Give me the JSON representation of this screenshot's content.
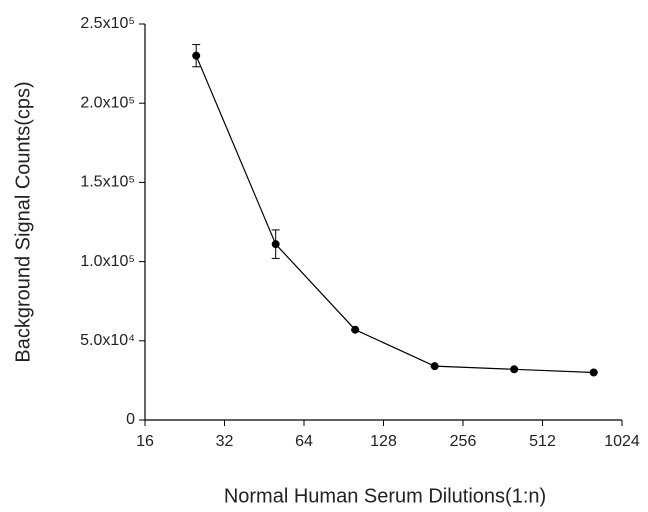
{
  "chart_data": {
    "type": "line",
    "x_label": "Normal Human Serum Dilutions(1:n)",
    "y_label": "Background Signal Counts(cps)",
    "x_scale": "log2",
    "series": [
      {
        "color": "#000000",
        "x": [
          25,
          50,
          100,
          200,
          400,
          800
        ],
        "values": [
          230000,
          111000,
          57000,
          34000,
          32000,
          30000
        ],
        "errors": [
          7000,
          9000,
          0,
          0,
          0,
          0
        ]
      }
    ],
    "xlim": [
      16,
      1024
    ],
    "xticks": [
      16,
      32,
      64,
      128,
      256,
      512,
      1024
    ],
    "ylim": [
      0,
      250000
    ],
    "yticks": [
      0,
      {
        "value": 50000,
        "label": "5.0x10⁴"
      },
      {
        "value": 100000,
        "label": "1.0x10⁵"
      },
      {
        "value": 150000,
        "label": "1.5x10⁵"
      },
      {
        "value": 200000,
        "label": "2.0x10⁵"
      },
      {
        "value": 250000,
        "label": "2.5x10⁵"
      }
    ],
    "grid": false
  }
}
